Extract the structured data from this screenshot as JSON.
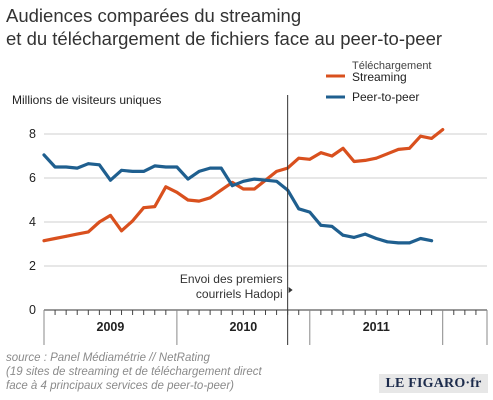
{
  "title": {
    "line1": "Audiences comparées du streaming",
    "line2": "et du téléchargement de fichiers face au peer-to-peer"
  },
  "chart_data": {
    "type": "line",
    "ylabel": "Millions de visiteurs uniques",
    "ylim": [
      0,
      9
    ],
    "yticks": [
      0,
      2,
      4,
      6,
      8
    ],
    "xlim": [
      0,
      40
    ],
    "x_period_labels": [
      {
        "label": "2009",
        "from": 0,
        "to": 12
      },
      {
        "label": "2010",
        "from": 12,
        "to": 24
      },
      {
        "label": "2011",
        "from": 24,
        "to": 36
      }
    ],
    "grid": true,
    "legend_position": "top-right",
    "series": [
      {
        "name": "Téléchargement\nStreaming",
        "legend_line1": "Téléchargement",
        "legend_line2": "Streaming",
        "color": "#d9501e",
        "values": [
          3.15,
          3.25,
          3.35,
          3.45,
          3.55,
          4.0,
          4.3,
          3.6,
          4.05,
          4.65,
          4.7,
          5.6,
          5.35,
          5.0,
          4.95,
          5.1,
          5.45,
          5.8,
          5.5,
          5.5,
          5.9,
          6.3,
          6.45,
          6.9,
          6.85,
          7.15,
          7.0,
          7.35,
          6.75,
          6.8,
          6.9,
          7.1,
          7.3,
          7.35,
          7.9,
          7.8,
          8.2
        ]
      },
      {
        "name": "Peer-to-peer",
        "color": "#1f5f8f",
        "values": [
          7.05,
          6.5,
          6.5,
          6.45,
          6.65,
          6.6,
          5.9,
          6.35,
          6.3,
          6.3,
          6.55,
          6.5,
          6.5,
          5.95,
          6.3,
          6.45,
          6.45,
          5.65,
          5.85,
          5.95,
          5.9,
          5.85,
          5.45,
          4.6,
          4.45,
          3.85,
          3.8,
          3.4,
          3.3,
          3.45,
          3.25,
          3.1,
          3.05,
          3.05,
          3.25,
          3.15
        ]
      }
    ],
    "annotation": {
      "line1": "Envoi des premiers",
      "line2": "courriels Hadopi",
      "x": 22
    }
  },
  "source": {
    "line1": "source : Panel Médiamétrie // NetRating",
    "line2": "(19 sites de streaming et de téléchargement direct",
    "line3": "face à 4 principaux services de peer-to-peer)"
  },
  "logo": "LE FIGARO·fr"
}
